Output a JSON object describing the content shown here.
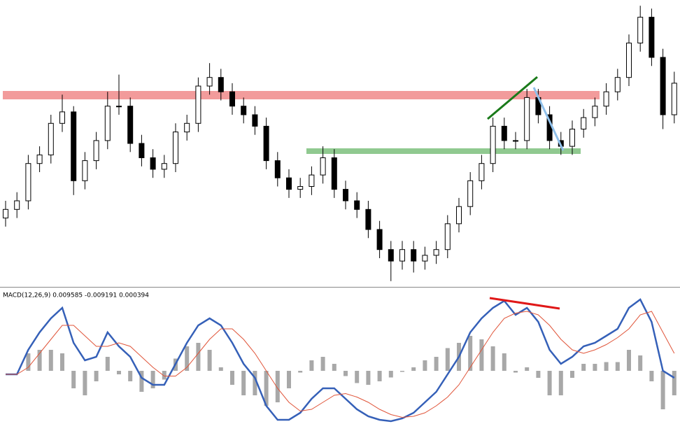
{
  "chart_data": [
    {
      "type": "candlestick",
      "open": [
        24,
        27,
        30,
        43,
        46,
        57,
        61,
        37,
        44,
        51,
        63,
        63,
        50,
        45,
        41,
        43,
        54,
        57,
        70,
        73,
        68,
        63,
        60,
        56,
        44,
        38,
        34,
        35,
        39,
        45,
        34,
        30,
        27,
        20,
        13,
        9,
        13,
        9,
        11,
        13,
        22,
        28,
        37,
        43,
        56,
        51,
        51,
        66,
        60,
        51,
        49,
        55,
        59,
        63,
        68,
        73,
        85,
        94,
        80,
        60
      ],
      "high": [
        30,
        33,
        46,
        49,
        60,
        67,
        63,
        47,
        54,
        68,
        74,
        66,
        53,
        48,
        46,
        57,
        60,
        73,
        78,
        76,
        71,
        66,
        63,
        59,
        47,
        41,
        38,
        42,
        49,
        48,
        37,
        33,
        30,
        23,
        16,
        16,
        16,
        14,
        16,
        25,
        31,
        40,
        46,
        59,
        59,
        54,
        69,
        69,
        63,
        54,
        58,
        62,
        66,
        71,
        76,
        88,
        98,
        97,
        83,
        75
      ],
      "low": [
        21,
        24,
        27,
        40,
        43,
        54,
        32,
        34,
        41,
        48,
        60,
        47,
        42,
        38,
        38,
        40,
        51,
        54,
        67,
        65,
        60,
        57,
        53,
        41,
        35,
        31,
        31,
        32,
        36,
        31,
        27,
        24,
        17,
        10,
        2,
        6,
        5,
        6,
        8,
        10,
        19,
        25,
        34,
        40,
        48,
        48,
        48,
        57,
        48,
        46,
        46,
        52,
        56,
        60,
        65,
        70,
        82,
        77,
        55,
        57
      ],
      "close": [
        27,
        30,
        43,
        46,
        57,
        61,
        37,
        44,
        51,
        63,
        63,
        50,
        45,
        41,
        43,
        54,
        57,
        70,
        73,
        68,
        63,
        60,
        56,
        44,
        38,
        34,
        35,
        39,
        45,
        34,
        30,
        27,
        20,
        13,
        9,
        13,
        9,
        11,
        13,
        22,
        28,
        37,
        43,
        56,
        51,
        51,
        66,
        60,
        51,
        49,
        55,
        59,
        63,
        68,
        73,
        85,
        94,
        80,
        60,
        71
      ],
      "ylim": [
        0,
        100
      ]
    },
    {
      "type": "macd",
      "title": "MACD(12,26,9) 0.009585 -0.009191 0.000394",
      "ylim": [
        -0.0152,
        0.0236
      ],
      "histogram": {
        "color": "#a8a8a8",
        "values": [
          0,
          0,
          0.005,
          0.006,
          0.006,
          0.005,
          -0.005,
          -0.007,
          -0.003,
          0.004,
          -0.001,
          -0.003,
          -0.006,
          -0.005,
          -0.0025,
          0.0035,
          0.007,
          0.008,
          0.006,
          0.001,
          -0.004,
          -0.007,
          -0.007,
          -0.01,
          -0.009,
          -0.005,
          -0.0005,
          0.003,
          0.004,
          0.002,
          -0.0015,
          -0.0035,
          -0.004,
          -0.003,
          -0.0019,
          -0.0003,
          0.001,
          0.003,
          0.004,
          0.0065,
          0.008,
          0.01,
          0.009,
          0.007,
          0.005,
          -0.0005,
          0.001,
          -0.002,
          -0.007,
          -0.007,
          -0.002,
          0.002,
          0.002,
          0.0025,
          0.0025,
          0.006,
          0.0044,
          -0.003,
          -0.011,
          -0.007
        ]
      },
      "series": [
        {
          "color": "#3560b8",
          "values": [
            -0.001,
            -0.001,
            0.006,
            0.011,
            0.015,
            0.018,
            0.008,
            0.003,
            0.004,
            0.011,
            0.007,
            0.004,
            -0.002,
            -0.004,
            -0.004,
            0.002,
            0.008,
            0.013,
            0.015,
            0.013,
            0.008,
            0.002,
            -0.002,
            -0.01,
            -0.014,
            -0.014,
            -0.012,
            -0.008,
            -0.005,
            -0.005,
            -0.008,
            -0.011,
            -0.013,
            -0.014,
            -0.0144,
            -0.0136,
            -0.012,
            -0.009,
            -0.006,
            -0.001,
            0.004,
            0.011,
            0.015,
            0.018,
            0.02,
            0.016,
            0.018,
            0.014,
            0.006,
            0.002,
            0.004,
            0.007,
            0.008,
            0.01,
            0.012,
            0.018,
            0.0204,
            0.014,
            0,
            -0.002
          ]
        },
        {
          "color": "#e0553a",
          "values": [
            -0.001,
            -0.001,
            0.001,
            0.005,
            0.009,
            0.013,
            0.013,
            0.01,
            0.007,
            0.007,
            0.008,
            0.007,
            0.004,
            0.001,
            -0.0015,
            -0.0015,
            0.001,
            0.005,
            0.009,
            0.012,
            0.012,
            0.009,
            0.005,
            0,
            -0.005,
            -0.009,
            -0.0115,
            -0.011,
            -0.009,
            -0.007,
            -0.0065,
            -0.0075,
            -0.009,
            -0.011,
            -0.0125,
            -0.0133,
            -0.013,
            -0.012,
            -0.01,
            -0.0075,
            -0.004,
            0.001,
            0.006,
            0.011,
            0.015,
            0.0165,
            0.017,
            0.016,
            0.013,
            0.009,
            0.006,
            0.005,
            0.006,
            0.0075,
            0.0095,
            0.012,
            0.016,
            0.017,
            0.011,
            0.005
          ]
        }
      ]
    }
  ]
}
